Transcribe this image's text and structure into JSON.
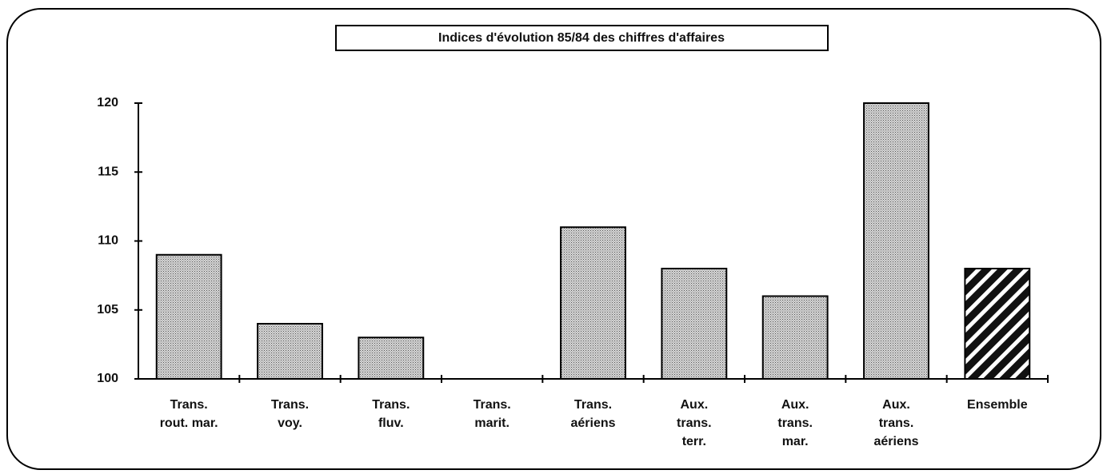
{
  "chart_data": {
    "type": "bar",
    "title": "Indices d'évolution 85/84 des chiffres d'affaires",
    "categories": [
      [
        "Trans.",
        "rout. mar."
      ],
      [
        "Trans.",
        "voy."
      ],
      [
        "Trans.",
        "fluv."
      ],
      [
        "Trans.",
        "marit."
      ],
      [
        "Trans.",
        "aériens"
      ],
      [
        "Aux.",
        "trans.",
        "terr."
      ],
      [
        "Aux.",
        "trans.",
        "mar."
      ],
      [
        "Aux.",
        "trans.",
        "aériens"
      ],
      [
        "Ensemble"
      ]
    ],
    "values": [
      109,
      104,
      103,
      100,
      111,
      108,
      106,
      120,
      108
    ],
    "patterns": [
      "dots",
      "dots",
      "dots",
      "dots",
      "dots",
      "dots",
      "dots",
      "dots",
      "hatch"
    ],
    "ylim": [
      100,
      120
    ],
    "yticks": [
      100,
      105,
      110,
      115,
      120
    ],
    "grid": false
  }
}
